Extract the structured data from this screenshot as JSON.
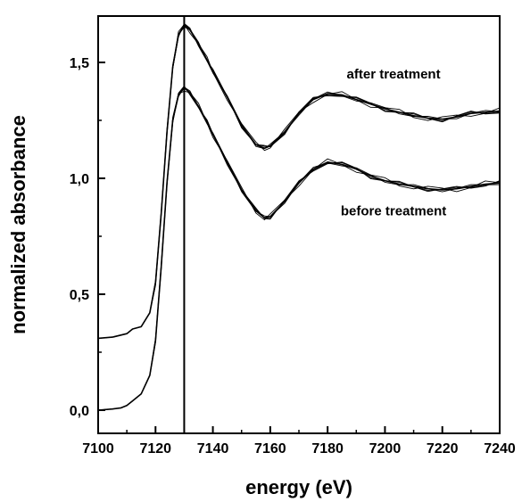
{
  "chart_data": {
    "type": "line",
    "xlabel": "energy (eV)",
    "ylabel": "normalized absorbance",
    "xlim": [
      7100,
      7240
    ],
    "ylim": [
      -0.1,
      1.7
    ],
    "xticks": [
      7100,
      7120,
      7140,
      7160,
      7180,
      7200,
      7220,
      7240
    ],
    "xtick_labels": [
      "7100",
      "7120",
      "7140",
      "7160",
      "7180",
      "7200",
      "7220",
      "7240"
    ],
    "yticks": [
      0,
      0.5,
      1.0,
      1.5
    ],
    "ytick_labels": [
      "0,0",
      "0,5",
      "1,0",
      "1,5"
    ],
    "vertical_line_x": 7130,
    "grid": false,
    "annotations": [
      {
        "text": "after treatment",
        "x": 7203,
        "y": 1.43
      },
      {
        "text": "before treatment",
        "x": 7203,
        "y": 0.84
      }
    ],
    "series": [
      {
        "group": "after treatment",
        "color": "#000000",
        "x": [
          7100,
          7105,
          7110,
          7112,
          7115,
          7118,
          7120,
          7122,
          7124,
          7126,
          7128,
          7130,
          7132,
          7135,
          7138,
          7140,
          7145,
          7150,
          7155,
          7158,
          7160,
          7165,
          7170,
          7175,
          7180,
          7185,
          7190,
          7195,
          7200,
          7205,
          7210,
          7215,
          7220,
          7225,
          7230,
          7235,
          7240
        ],
        "y": [
          0.31,
          0.315,
          0.33,
          0.35,
          0.36,
          0.42,
          0.55,
          0.85,
          1.2,
          1.48,
          1.62,
          1.66,
          1.64,
          1.58,
          1.51,
          1.46,
          1.35,
          1.23,
          1.145,
          1.13,
          1.14,
          1.2,
          1.28,
          1.34,
          1.365,
          1.36,
          1.34,
          1.32,
          1.3,
          1.285,
          1.27,
          1.26,
          1.255,
          1.265,
          1.28,
          1.285,
          1.29
        ]
      },
      {
        "group": "before treatment",
        "color": "#000000",
        "x": [
          7100,
          7105,
          7108,
          7110,
          7112,
          7115,
          7118,
          7120,
          7122,
          7124,
          7126,
          7128,
          7130,
          7132,
          7135,
          7138,
          7140,
          7145,
          7150,
          7155,
          7158,
          7160,
          7165,
          7170,
          7175,
          7180,
          7185,
          7190,
          7195,
          7200,
          7205,
          7210,
          7215,
          7220,
          7225,
          7230,
          7235,
          7240
        ],
        "y": [
          0.0,
          0.005,
          0.01,
          0.02,
          0.04,
          0.07,
          0.15,
          0.3,
          0.62,
          0.98,
          1.25,
          1.36,
          1.39,
          1.37,
          1.31,
          1.24,
          1.19,
          1.07,
          0.95,
          0.86,
          0.83,
          0.835,
          0.9,
          0.98,
          1.04,
          1.07,
          1.06,
          1.04,
          1.01,
          0.99,
          0.975,
          0.965,
          0.955,
          0.95,
          0.955,
          0.965,
          0.975,
          0.98
        ]
      }
    ]
  }
}
